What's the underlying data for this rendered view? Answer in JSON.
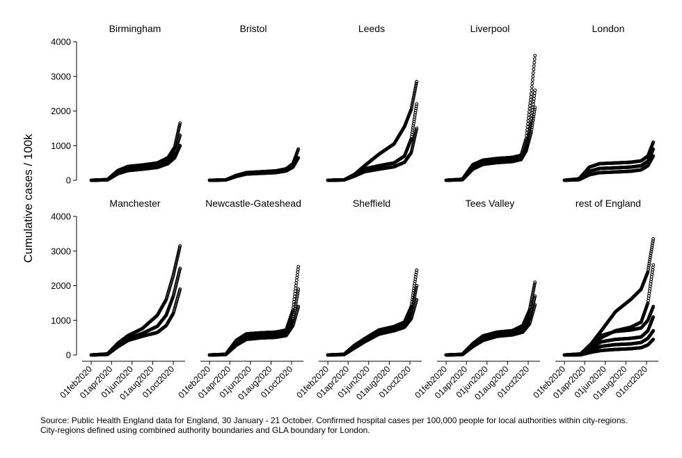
{
  "chart_data": {
    "type": "scatter",
    "ylabel": "Cumulative cases / 100k",
    "xlabel": "",
    "y_ticks": [
      0,
      1000,
      2000,
      3000,
      4000
    ],
    "ylim": [
      0,
      4000
    ],
    "x_ticks": [
      "01feb2020",
      "01apr2020",
      "01jun2020",
      "01aug2020",
      "01oct2020"
    ],
    "x_tick_dates": [
      "2020-02-01",
      "2020-04-01",
      "2020-06-01",
      "2020-08-01",
      "2020-10-01"
    ],
    "xlim": [
      "2020-01-05",
      "2020-11-05"
    ],
    "grid": false,
    "legend": "none",
    "marker_color": "#000000",
    "panels": [
      {
        "name": "Birmingham",
        "series": [
          {
            "dates": [
              "2020-02-01",
              "2020-03-20",
              "2020-04-20",
              "2020-05-20",
              "2020-07-01",
              "2020-08-15",
              "2020-09-15",
              "2020-10-05",
              "2020-10-21"
            ],
            "values": [
              0,
              20,
              280,
              400,
              440,
              500,
              650,
              950,
              1650
            ]
          },
          {
            "dates": [
              "2020-02-01",
              "2020-03-20",
              "2020-04-20",
              "2020-05-20",
              "2020-07-01",
              "2020-08-15",
              "2020-09-15",
              "2020-10-05",
              "2020-10-21"
            ],
            "values": [
              0,
              15,
              230,
              330,
              370,
              430,
              560,
              780,
              1300
            ]
          },
          {
            "dates": [
              "2020-02-01",
              "2020-03-20",
              "2020-04-20",
              "2020-05-20",
              "2020-07-01",
              "2020-08-15",
              "2020-09-15",
              "2020-10-05",
              "2020-10-21"
            ],
            "values": [
              0,
              10,
              190,
              280,
              320,
              370,
              480,
              650,
              1000
            ]
          }
        ]
      },
      {
        "name": "Bristol",
        "series": [
          {
            "dates": [
              "2020-02-01",
              "2020-03-20",
              "2020-04-20",
              "2020-05-20",
              "2020-07-01",
              "2020-08-15",
              "2020-09-15",
              "2020-10-05",
              "2020-10-21"
            ],
            "values": [
              0,
              10,
              140,
              220,
              245,
              270,
              330,
              480,
              900
            ]
          },
          {
            "dates": [
              "2020-02-01",
              "2020-03-20",
              "2020-04-20",
              "2020-05-20",
              "2020-07-01",
              "2020-08-15",
              "2020-09-15",
              "2020-10-05",
              "2020-10-21"
            ],
            "values": [
              0,
              8,
              110,
              180,
              200,
              220,
              270,
              380,
              650
            ]
          }
        ]
      },
      {
        "name": "Leeds",
        "series": [
          {
            "dates": [
              "2020-02-01",
              "2020-03-20",
              "2020-04-20",
              "2020-05-20",
              "2020-07-01",
              "2020-08-15",
              "2020-09-15",
              "2020-10-05",
              "2020-10-21"
            ],
            "values": [
              0,
              10,
              170,
              420,
              750,
              1050,
              1550,
              2050,
              2850
            ]
          },
          {
            "dates": [
              "2020-02-01",
              "2020-03-20",
              "2020-04-20",
              "2020-05-20",
              "2020-07-01",
              "2020-08-15",
              "2020-09-15",
              "2020-10-05",
              "2020-10-21"
            ],
            "values": [
              0,
              10,
              150,
              330,
              420,
              500,
              700,
              1200,
              2200
            ]
          },
          {
            "dates": [
              "2020-02-01",
              "2020-03-20",
              "2020-04-20",
              "2020-05-20",
              "2020-07-01",
              "2020-08-15",
              "2020-09-15",
              "2020-10-05",
              "2020-10-21"
            ],
            "values": [
              0,
              8,
              120,
              250,
              320,
              390,
              520,
              800,
              1500
            ]
          }
        ]
      },
      {
        "name": "Liverpool",
        "series": [
          {
            "dates": [
              "2020-02-01",
              "2020-03-20",
              "2020-04-20",
              "2020-05-20",
              "2020-07-01",
              "2020-08-15",
              "2020-09-10",
              "2020-09-25",
              "2020-10-10",
              "2020-10-21"
            ],
            "values": [
              0,
              30,
              450,
              580,
              630,
              660,
              720,
              1200,
              2500,
              3600
            ]
          },
          {
            "dates": [
              "2020-02-01",
              "2020-03-20",
              "2020-04-20",
              "2020-05-20",
              "2020-07-01",
              "2020-08-15",
              "2020-09-10",
              "2020-09-25",
              "2020-10-10",
              "2020-10-21"
            ],
            "values": [
              0,
              20,
              380,
              510,
              560,
              600,
              650,
              950,
              1700,
              2600
            ]
          },
          {
            "dates": [
              "2020-02-01",
              "2020-03-20",
              "2020-04-20",
              "2020-05-20",
              "2020-07-01",
              "2020-08-15",
              "2020-09-10",
              "2020-09-25",
              "2020-10-10",
              "2020-10-21"
            ],
            "values": [
              0,
              15,
              320,
              460,
              510,
              540,
              600,
              850,
              1400,
              2100
            ]
          }
        ]
      },
      {
        "name": "London",
        "series": [
          {
            "dates": [
              "2020-02-01",
              "2020-03-15",
              "2020-04-15",
              "2020-05-15",
              "2020-07-01",
              "2020-08-15",
              "2020-09-15",
              "2020-10-05",
              "2020-10-21"
            ],
            "values": [
              0,
              40,
              380,
              480,
              500,
              520,
              560,
              700,
              1100
            ]
          },
          {
            "dates": [
              "2020-02-01",
              "2020-03-15",
              "2020-04-15",
              "2020-05-15",
              "2020-07-01",
              "2020-08-15",
              "2020-09-15",
              "2020-10-05",
              "2020-10-21"
            ],
            "values": [
              0,
              25,
              260,
              340,
              360,
              380,
              420,
              550,
              900
            ]
          },
          {
            "dates": [
              "2020-02-01",
              "2020-03-15",
              "2020-04-15",
              "2020-05-15",
              "2020-07-01",
              "2020-08-15",
              "2020-09-15",
              "2020-10-05",
              "2020-10-21"
            ],
            "values": [
              0,
              15,
              160,
              220,
              240,
              260,
              300,
              420,
              700
            ]
          }
        ]
      },
      {
        "name": "Manchester",
        "series": [
          {
            "dates": [
              "2020-02-01",
              "2020-03-20",
              "2020-04-20",
              "2020-05-20",
              "2020-07-01",
              "2020-08-15",
              "2020-09-10",
              "2020-10-01",
              "2020-10-21"
            ],
            "values": [
              0,
              30,
              340,
              560,
              760,
              1150,
              1600,
              2300,
              3150
            ]
          },
          {
            "dates": [
              "2020-02-01",
              "2020-03-20",
              "2020-04-20",
              "2020-05-20",
              "2020-07-01",
              "2020-08-15",
              "2020-09-10",
              "2020-10-01",
              "2020-10-21"
            ],
            "values": [
              0,
              20,
              290,
              480,
              620,
              830,
              1150,
              1700,
              2500
            ]
          },
          {
            "dates": [
              "2020-02-01",
              "2020-03-20",
              "2020-04-20",
              "2020-05-20",
              "2020-07-01",
              "2020-08-15",
              "2020-09-10",
              "2020-10-01",
              "2020-10-21"
            ],
            "values": [
              0,
              15,
              240,
              420,
              540,
              650,
              850,
              1200,
              1900
            ]
          }
        ]
      },
      {
        "name": "Newcastle-Gateshead",
        "series": [
          {
            "dates": [
              "2020-02-01",
              "2020-03-20",
              "2020-04-20",
              "2020-05-20",
              "2020-07-01",
              "2020-08-15",
              "2020-09-15",
              "2020-10-05",
              "2020-10-21"
            ],
            "values": [
              0,
              20,
              420,
              610,
              640,
              660,
              720,
              1300,
              2550
            ]
          },
          {
            "dates": [
              "2020-02-01",
              "2020-03-20",
              "2020-04-20",
              "2020-05-20",
              "2020-07-01",
              "2020-08-15",
              "2020-09-15",
              "2020-10-05",
              "2020-10-21"
            ],
            "values": [
              0,
              15,
              340,
              520,
              560,
              580,
              640,
              1000,
              1900
            ]
          },
          {
            "dates": [
              "2020-02-01",
              "2020-03-20",
              "2020-04-20",
              "2020-05-20",
              "2020-07-01",
              "2020-08-15",
              "2020-09-15",
              "2020-10-05",
              "2020-10-21"
            ],
            "values": [
              0,
              10,
              280,
              450,
              490,
              510,
              560,
              850,
              1400
            ]
          }
        ]
      },
      {
        "name": "Sheffield",
        "series": [
          {
            "dates": [
              "2020-02-01",
              "2020-03-20",
              "2020-04-20",
              "2020-05-20",
              "2020-07-01",
              "2020-08-15",
              "2020-09-15",
              "2020-10-05",
              "2020-10-21"
            ],
            "values": [
              0,
              20,
              280,
              470,
              720,
              820,
              950,
              1400,
              2450
            ]
          },
          {
            "dates": [
              "2020-02-01",
              "2020-03-20",
              "2020-04-20",
              "2020-05-20",
              "2020-07-01",
              "2020-08-15",
              "2020-09-15",
              "2020-10-05",
              "2020-10-21"
            ],
            "values": [
              0,
              15,
              230,
              420,
              660,
              760,
              860,
              1200,
              2000
            ]
          },
          {
            "dates": [
              "2020-02-01",
              "2020-03-20",
              "2020-04-20",
              "2020-05-20",
              "2020-07-01",
              "2020-08-15",
              "2020-09-15",
              "2020-10-05",
              "2020-10-21"
            ],
            "values": [
              0,
              10,
              200,
              380,
              600,
              700,
              800,
              1050,
              1600
            ]
          }
        ]
      },
      {
        "name": "Tees Valley",
        "series": [
          {
            "dates": [
              "2020-02-01",
              "2020-03-20",
              "2020-04-20",
              "2020-05-20",
              "2020-07-01",
              "2020-08-15",
              "2020-09-15",
              "2020-10-05",
              "2020-10-21"
            ],
            "values": [
              0,
              20,
              330,
              550,
              660,
              700,
              850,
              1300,
              2100
            ]
          },
          {
            "dates": [
              "2020-02-01",
              "2020-03-20",
              "2020-04-20",
              "2020-05-20",
              "2020-07-01",
              "2020-08-15",
              "2020-09-15",
              "2020-10-05",
              "2020-10-21"
            ],
            "values": [
              0,
              15,
              280,
              480,
              590,
              630,
              740,
              1050,
              1700
            ]
          },
          {
            "dates": [
              "2020-02-01",
              "2020-03-20",
              "2020-04-20",
              "2020-05-20",
              "2020-07-01",
              "2020-08-15",
              "2020-09-15",
              "2020-10-05",
              "2020-10-21"
            ],
            "values": [
              0,
              10,
              240,
              420,
              540,
              580,
              660,
              900,
              1450
            ]
          }
        ]
      },
      {
        "name": "rest of England",
        "series": [
          {
            "dates": [
              "2020-02-01",
              "2020-03-20",
              "2020-04-20",
              "2020-05-20",
              "2020-07-01",
              "2020-08-15",
              "2020-09-15",
              "2020-10-05",
              "2020-10-21"
            ],
            "values": [
              0,
              30,
              320,
              700,
              1250,
              1600,
              1900,
              2400,
              3350
            ]
          },
          {
            "dates": [
              "2020-02-01",
              "2020-03-20",
              "2020-04-20",
              "2020-05-20",
              "2020-07-01",
              "2020-08-15",
              "2020-09-15",
              "2020-10-05",
              "2020-10-21"
            ],
            "values": [
              0,
              25,
              280,
              500,
              700,
              800,
              950,
              1500,
              2600
            ]
          },
          {
            "dates": [
              "2020-02-01",
              "2020-03-20",
              "2020-04-20",
              "2020-05-20",
              "2020-07-01",
              "2020-08-15",
              "2020-09-15",
              "2020-10-05",
              "2020-10-21"
            ],
            "values": [
              0,
              20,
              300,
              560,
              680,
              720,
              780,
              1000,
              1400
            ]
          },
          {
            "dates": [
              "2020-02-01",
              "2020-03-20",
              "2020-04-20",
              "2020-05-20",
              "2020-07-01",
              "2020-08-15",
              "2020-09-15",
              "2020-10-05",
              "2020-10-21"
            ],
            "values": [
              0,
              15,
              220,
              380,
              450,
              480,
              520,
              700,
              1100
            ]
          },
          {
            "dates": [
              "2020-02-01",
              "2020-03-20",
              "2020-04-20",
              "2020-05-20",
              "2020-07-01",
              "2020-08-15",
              "2020-09-15",
              "2020-10-05",
              "2020-10-21"
            ],
            "values": [
              0,
              10,
              150,
              250,
              300,
              320,
              360,
              480,
              700
            ]
          },
          {
            "dates": [
              "2020-02-01",
              "2020-03-20",
              "2020-04-20",
              "2020-05-20",
              "2020-07-01",
              "2020-08-15",
              "2020-09-15",
              "2020-10-05",
              "2020-10-21"
            ],
            "values": [
              0,
              5,
              80,
              130,
              160,
              180,
              210,
              290,
              450
            ]
          }
        ]
      }
    ]
  },
  "source_note": {
    "line1": "Source: Public Health England data for England, 30 January - 21 October. Confirmed hospital cases per 100,000 people for local authorities within city-regions.",
    "line2": "City-regions defined using combined authority boundaries and GLA boundary for London."
  }
}
